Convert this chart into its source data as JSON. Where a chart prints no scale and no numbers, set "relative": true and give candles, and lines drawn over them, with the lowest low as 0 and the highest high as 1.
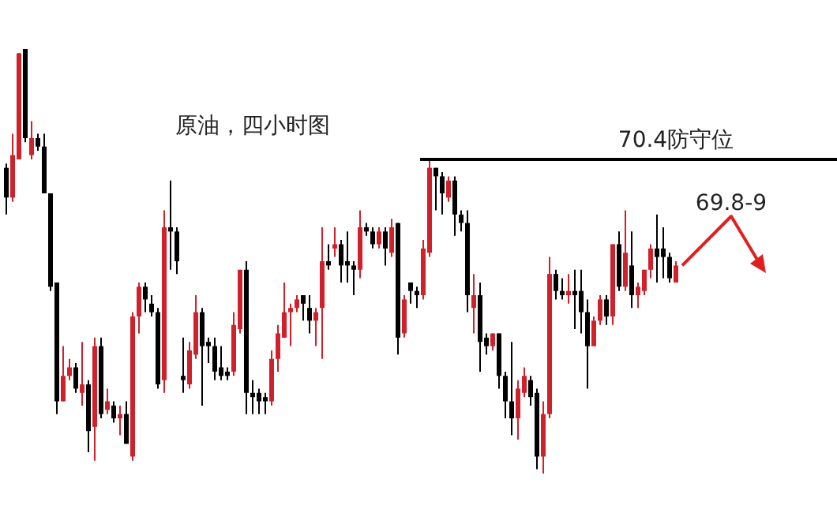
{
  "chart_data": {
    "type": "candlestick",
    "title": "原油，四小时图",
    "relative": true,
    "categories": [
      null,
      null,
      null,
      null,
      null,
      null,
      null,
      null,
      null,
      null,
      null,
      null,
      null,
      null,
      null,
      null,
      null,
      null,
      null,
      null,
      null,
      null,
      null,
      null,
      null,
      null,
      null,
      null,
      null,
      null,
      null,
      null,
      null,
      null,
      null,
      null,
      null,
      null,
      null,
      null,
      null,
      null,
      null,
      null,
      null,
      null,
      null,
      null,
      null,
      null,
      null,
      null,
      null,
      null,
      null,
      null,
      null,
      null,
      null,
      null,
      null,
      null,
      null,
      null,
      null,
      null,
      null,
      null,
      null,
      null,
      null,
      null,
      null,
      null,
      null,
      null,
      null,
      null,
      null,
      null,
      null,
      null,
      null,
      null,
      null,
      null,
      null,
      null,
      null,
      null,
      null,
      null,
      null,
      null,
      null,
      null,
      null,
      null,
      null,
      null,
      null,
      null,
      null,
      null,
      null,
      null,
      null
    ],
    "ohlc": [
      [
        0.72,
        0.73,
        0.61,
        0.65
      ],
      [
        0.65,
        0.8,
        0.64,
        0.75
      ],
      [
        0.74,
        0.99,
        0.74,
        0.99
      ],
      [
        1.0,
        1.0,
        0.78,
        0.79
      ],
      [
        0.75,
        0.83,
        0.74,
        0.79
      ],
      [
        0.79,
        0.8,
        0.76,
        0.77
      ],
      [
        0.77,
        0.8,
        0.66,
        0.66
      ],
      [
        0.66,
        0.66,
        0.43,
        0.44
      ],
      [
        0.45,
        0.45,
        0.14,
        0.17
      ],
      [
        0.17,
        0.3,
        0.17,
        0.23
      ],
      [
        0.23,
        0.27,
        0.22,
        0.25
      ],
      [
        0.25,
        0.26,
        0.19,
        0.2
      ],
      [
        0.19,
        0.31,
        0.16,
        0.21
      ],
      [
        0.21,
        0.22,
        0.05,
        0.1
      ],
      [
        0.11,
        0.32,
        0.03,
        0.3
      ],
      [
        0.3,
        0.32,
        0.13,
        0.14
      ],
      [
        0.15,
        0.2,
        0.14,
        0.17
      ],
      [
        0.16,
        0.17,
        0.12,
        0.13
      ],
      [
        0.13,
        0.16,
        0.09,
        0.14
      ],
      [
        0.14,
        0.17,
        0.07,
        0.07
      ],
      [
        0.04,
        0.38,
        0.03,
        0.37
      ],
      [
        0.37,
        0.45,
        0.33,
        0.44
      ],
      [
        0.44,
        0.45,
        0.38,
        0.41
      ],
      [
        0.4,
        0.42,
        0.37,
        0.38
      ],
      [
        0.38,
        0.39,
        0.2,
        0.21
      ],
      [
        0.22,
        0.62,
        0.19,
        0.58
      ],
      [
        0.58,
        0.69,
        0.48,
        0.57
      ],
      [
        0.57,
        0.58,
        0.47,
        0.5
      ],
      [
        0.23,
        0.32,
        0.19,
        0.22
      ],
      [
        0.21,
        0.31,
        0.2,
        0.29
      ],
      [
        0.28,
        0.42,
        0.27,
        0.38
      ],
      [
        0.38,
        0.39,
        0.16,
        0.3
      ],
      [
        0.31,
        0.32,
        0.26,
        0.3
      ],
      [
        0.3,
        0.32,
        0.22,
        0.24
      ],
      [
        0.25,
        0.3,
        0.22,
        0.23
      ],
      [
        0.24,
        0.25,
        0.22,
        0.23
      ],
      [
        0.24,
        0.38,
        0.23,
        0.35
      ],
      [
        0.34,
        0.48,
        0.33,
        0.48
      ],
      [
        0.48,
        0.5,
        0.14,
        0.19
      ],
      [
        0.19,
        0.22,
        0.14,
        0.18
      ],
      [
        0.19,
        0.2,
        0.14,
        0.17
      ],
      [
        0.18,
        0.19,
        0.14,
        0.17
      ],
      [
        0.17,
        0.29,
        0.16,
        0.27
      ],
      [
        0.27,
        0.35,
        0.24,
        0.33
      ],
      [
        0.32,
        0.45,
        0.32,
        0.38
      ],
      [
        0.38,
        0.4,
        0.3,
        0.39
      ],
      [
        0.39,
        0.42,
        0.38,
        0.41
      ],
      [
        0.42,
        0.42,
        0.36,
        0.4
      ],
      [
        0.39,
        0.42,
        0.33,
        0.36
      ],
      [
        0.36,
        0.39,
        0.3,
        0.38
      ],
      [
        0.39,
        0.58,
        0.27,
        0.5
      ],
      [
        0.5,
        0.54,
        0.48,
        0.49
      ],
      [
        0.53,
        0.58,
        0.51,
        0.54
      ],
      [
        0.54,
        0.55,
        0.45,
        0.49
      ],
      [
        0.5,
        0.57,
        0.45,
        0.49
      ],
      [
        0.49,
        0.5,
        0.42,
        0.48
      ],
      [
        0.48,
        0.62,
        0.46,
        0.58
      ],
      [
        0.58,
        0.59,
        0.56,
        0.57
      ],
      [
        0.57,
        0.58,
        0.53,
        0.54
      ],
      [
        0.54,
        0.58,
        0.53,
        0.57
      ],
      [
        0.57,
        0.58,
        0.49,
        0.53
      ],
      [
        0.52,
        0.6,
        0.51,
        0.58
      ],
      [
        0.59,
        0.59,
        0.28,
        0.32
      ],
      [
        0.33,
        0.42,
        0.32,
        0.41
      ],
      [
        0.45,
        0.45,
        0.4,
        0.43
      ],
      [
        0.43,
        0.44,
        0.39,
        0.42
      ],
      [
        0.42,
        0.55,
        0.41,
        0.53
      ],
      [
        0.52,
        0.74,
        0.51,
        0.72
      ],
      [
        0.72,
        0.72,
        0.62,
        0.7
      ],
      [
        0.7,
        0.71,
        0.61,
        0.66
      ],
      [
        0.65,
        0.7,
        0.64,
        0.69
      ],
      [
        0.69,
        0.7,
        0.56,
        0.61
      ],
      [
        0.61,
        0.62,
        0.57,
        0.59
      ],
      [
        0.59,
        0.62,
        0.38,
        0.42
      ],
      [
        0.39,
        0.47,
        0.33,
        0.42
      ],
      [
        0.42,
        0.45,
        0.24,
        0.31
      ],
      [
        0.32,
        0.33,
        0.28,
        0.3
      ],
      [
        0.3,
        0.33,
        0.29,
        0.33
      ],
      [
        0.33,
        0.33,
        0.2,
        0.23
      ],
      [
        0.23,
        0.24,
        0.13,
        0.17
      ],
      [
        0.17,
        0.31,
        0.09,
        0.13
      ],
      [
        0.13,
        0.22,
        0.08,
        0.2
      ],
      [
        0.19,
        0.25,
        0.18,
        0.23
      ],
      [
        0.22,
        0.23,
        0.16,
        0.18
      ],
      [
        0.19,
        0.2,
        0.01,
        0.04
      ],
      [
        0.04,
        0.17,
        0.0,
        0.14
      ],
      [
        0.14,
        0.51,
        0.13,
        0.47
      ],
      [
        0.47,
        0.48,
        0.41,
        0.43
      ],
      [
        0.43,
        0.46,
        0.41,
        0.42
      ],
      [
        0.42,
        0.47,
        0.4,
        0.43
      ],
      [
        0.43,
        0.48,
        0.34,
        0.42
      ],
      [
        0.43,
        0.48,
        0.33,
        0.38
      ],
      [
        0.38,
        0.41,
        0.2,
        0.3
      ],
      [
        0.3,
        0.37,
        0.3,
        0.36
      ],
      [
        0.36,
        0.42,
        0.35,
        0.41
      ],
      [
        0.41,
        0.42,
        0.35,
        0.37
      ],
      [
        0.37,
        0.54,
        0.35,
        0.54
      ],
      [
        0.54,
        0.57,
        0.43,
        0.44
      ],
      [
        0.44,
        0.62,
        0.43,
        0.52
      ],
      [
        0.49,
        0.57,
        0.39,
        0.42
      ],
      [
        0.42,
        0.45,
        0.39,
        0.44
      ],
      [
        0.43,
        0.48,
        0.42,
        0.48
      ],
      [
        0.48,
        0.54,
        0.46,
        0.53
      ],
      [
        0.53,
        0.61,
        0.45,
        0.51
      ],
      [
        0.53,
        0.58,
        0.46,
        0.51
      ],
      [
        0.51,
        0.52,
        0.45,
        0.46
      ],
      [
        0.45,
        0.5,
        0.45,
        0.49
      ]
    ],
    "colors": [
      "#000000",
      "#d0202a",
      "#d0202a",
      "#000000",
      "#d0202a",
      "#000000",
      "#000000",
      "#000000",
      "#000000",
      "#d0202a",
      "#d0202a",
      "#000000",
      "#d0202a",
      "#000000",
      "#d0202a",
      "#000000",
      "#d0202a",
      "#000000",
      "#d0202a",
      "#000000",
      "#d0202a",
      "#d0202a",
      "#000000",
      "#000000",
      "#000000",
      "#d0202a",
      "#000000",
      "#000000",
      "#000000",
      "#d0202a",
      "#d0202a",
      "#000000",
      "#000000",
      "#000000",
      "#000000",
      "#000000",
      "#d0202a",
      "#d0202a",
      "#000000",
      "#000000",
      "#000000",
      "#000000",
      "#d0202a",
      "#d0202a",
      "#d0202a",
      "#d0202a",
      "#d0202a",
      "#000000",
      "#000000",
      "#d0202a",
      "#d0202a",
      "#000000",
      "#d0202a",
      "#000000",
      "#000000",
      "#000000",
      "#d0202a",
      "#000000",
      "#000000",
      "#d0202a",
      "#000000",
      "#d0202a",
      "#000000",
      "#d0202a",
      "#000000",
      "#000000",
      "#d0202a",
      "#d0202a",
      "#000000",
      "#000000",
      "#d0202a",
      "#000000",
      "#000000",
      "#000000",
      "#d0202a",
      "#000000",
      "#000000",
      "#d0202a",
      "#000000",
      "#000000",
      "#000000",
      "#d0202a",
      "#d0202a",
      "#000000",
      "#000000",
      "#d0202a",
      "#d0202a",
      "#000000",
      "#000000",
      "#d0202a",
      "#000000",
      "#000000",
      "#000000",
      "#d0202a",
      "#d0202a",
      "#000000",
      "#d0202a",
      "#000000",
      "#d0202a",
      "#000000",
      "#d0202a",
      "#d0202a",
      "#d0202a",
      "#000000",
      "#000000",
      "#000000",
      "#d0202a"
    ],
    "ref_lines": [
      {
        "axis": "y",
        "value": 0.74,
        "label": "70.4防守位",
        "color": "#000000"
      }
    ],
    "annotations": [
      "69.8-9"
    ]
  }
}
